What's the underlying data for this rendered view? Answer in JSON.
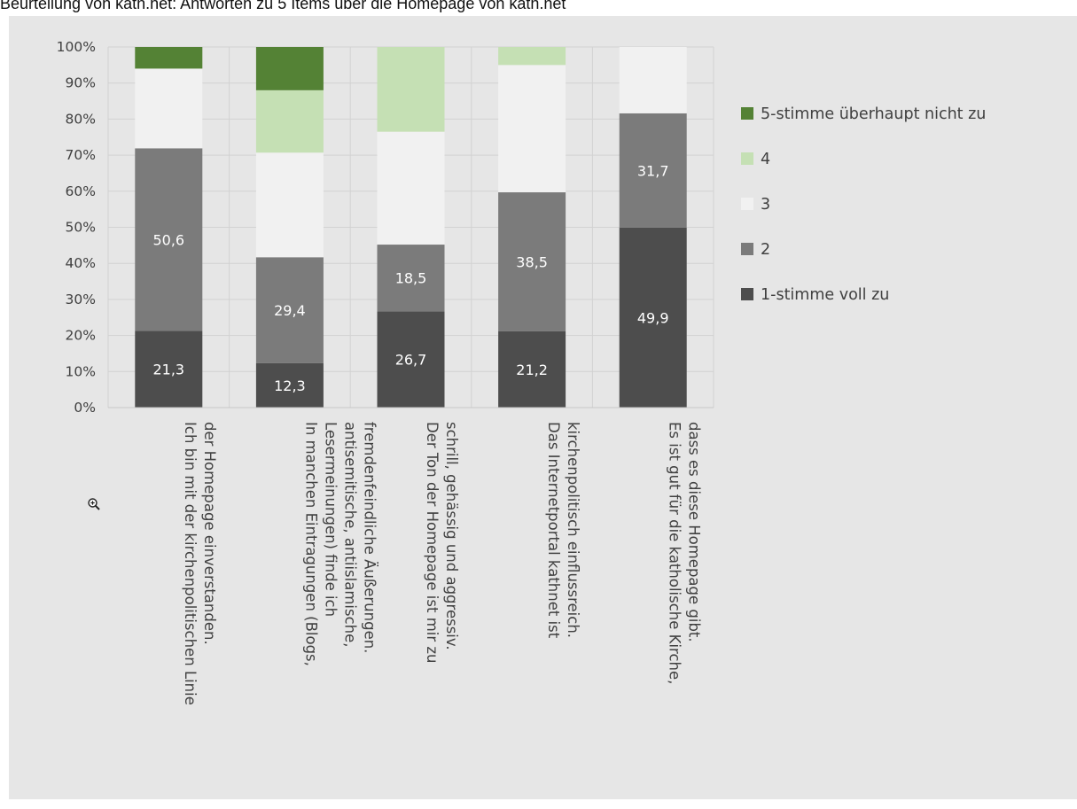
{
  "caption": "Beurteilung von kath.net: Antworten zu 5 Items über die Homepage von kath.net",
  "chart_data": {
    "type": "bar",
    "stacked": true,
    "percent": true,
    "ylim": [
      0,
      100
    ],
    "yticks": [
      "0%",
      "10%",
      "20%",
      "30%",
      "40%",
      "50%",
      "60%",
      "70%",
      "80%",
      "90%",
      "100%"
    ],
    "grid": true,
    "legend_position": "right",
    "categories": [
      [
        "Ich bin mit der kirchenpolitischen Linie",
        "der Homepage einverstanden."
      ],
      [
        "In manchen Eintragungen (Blogs,",
        "Lesermeinungen) finde ich",
        "antisemitische, antiislamische,",
        "fremdenfeindliche Äußerungen."
      ],
      [
        "Der Ton der Homepage ist mir zu",
        "schrill, gehässig und aggressiv."
      ],
      [
        "Das Internetportal kathnet ist",
        "kirchenpolitisch einflussreich."
      ],
      [
        "Es ist gut für die katholische Kirche,",
        "dass es diese Homepage gibt."
      ]
    ],
    "series": [
      {
        "name": "1-stimme voll zu",
        "color": "#4d4d4d",
        "values": [
          21.3,
          12.3,
          26.7,
          21.2,
          49.9
        ],
        "labels": [
          "21,3",
          "12,3",
          "26,7",
          "21,2",
          "49,9"
        ]
      },
      {
        "name": "2",
        "color": "#7b7b7b",
        "values": [
          50.6,
          29.4,
          18.5,
          38.5,
          31.7
        ],
        "labels": [
          "50,6",
          "29,4",
          "18,5",
          "38,5",
          "31,7"
        ]
      },
      {
        "name": "3",
        "color": "#f1f1f1",
        "values": [
          22.1,
          29.0,
          31.3,
          35.3,
          18.4
        ],
        "labels": [
          "",
          "",
          "",
          "",
          ""
        ]
      },
      {
        "name": "4",
        "color": "#c5e0b4",
        "values": [
          0,
          17.3,
          23.5,
          5.0,
          0
        ],
        "labels": [
          "",
          "",
          "",
          "",
          ""
        ]
      },
      {
        "name": "5-stimme überhaupt nicht zu",
        "color": "#548235",
        "values": [
          6.0,
          12.0,
          0,
          0,
          0
        ],
        "labels": [
          "",
          "",
          "",
          "",
          ""
        ]
      }
    ]
  }
}
